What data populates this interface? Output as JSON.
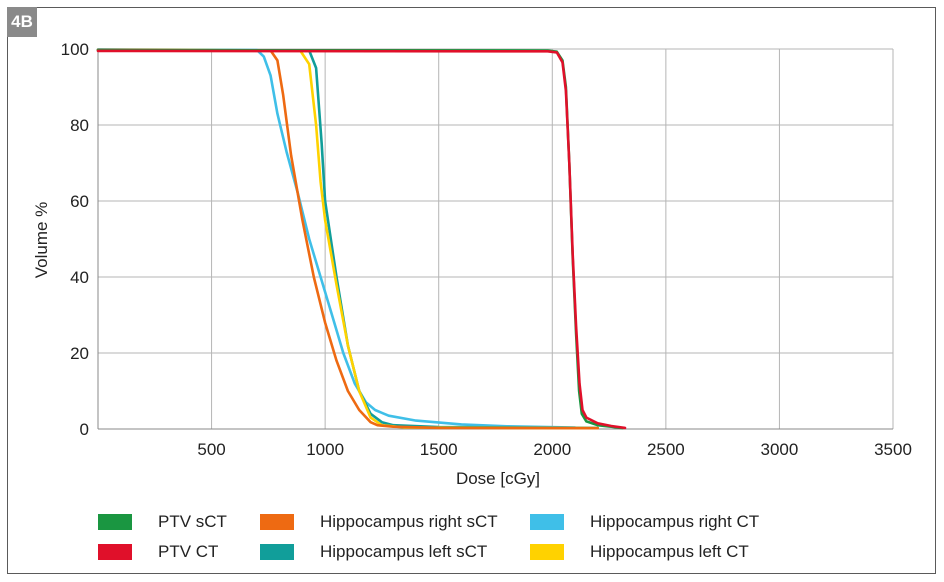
{
  "panel_label": "4B",
  "chart_data": {
    "type": "line",
    "xlabel": "Dose [cGy]",
    "ylabel": "Volume %",
    "xlim": [
      0,
      3500
    ],
    "ylim": [
      0,
      100
    ],
    "xticks": [
      "500",
      "1000",
      "1500",
      "2000",
      "2500",
      "3000",
      "3500"
    ],
    "yticks": [
      "0",
      "20",
      "40",
      "60",
      "80",
      "100"
    ],
    "grid": true,
    "legend_position": "bottom",
    "series": [
      {
        "name": "PTV sCT",
        "color": "#1a9641",
        "points": [
          [
            0,
            99.7
          ],
          [
            1980,
            99.6
          ],
          [
            2020,
            99.3
          ],
          [
            2045,
            97
          ],
          [
            2060,
            90
          ],
          [
            2075,
            70
          ],
          [
            2090,
            45
          ],
          [
            2105,
            25
          ],
          [
            2118,
            10
          ],
          [
            2130,
            4
          ],
          [
            2150,
            2
          ],
          [
            2200,
            1
          ],
          [
            2260,
            0.6
          ],
          [
            2310,
            0.2
          ]
        ]
      },
      {
        "name": "PTV CT",
        "color": "#e0102a",
        "points": [
          [
            0,
            99.5
          ],
          [
            1980,
            99.4
          ],
          [
            2020,
            99.1
          ],
          [
            2045,
            96.5
          ],
          [
            2060,
            89
          ],
          [
            2075,
            70
          ],
          [
            2090,
            46
          ],
          [
            2105,
            27
          ],
          [
            2120,
            12
          ],
          [
            2133,
            5
          ],
          [
            2150,
            3
          ],
          [
            2200,
            1.5
          ],
          [
            2260,
            0.8
          ],
          [
            2320,
            0.3
          ]
        ]
      },
      {
        "name": "Hippocampus right sCT",
        "color": "#ee6a12",
        "points": [
          [
            0,
            99.8
          ],
          [
            760,
            99.6
          ],
          [
            790,
            97
          ],
          [
            815,
            88
          ],
          [
            850,
            72
          ],
          [
            900,
            55
          ],
          [
            950,
            40
          ],
          [
            1000,
            28
          ],
          [
            1050,
            18
          ],
          [
            1100,
            10
          ],
          [
            1150,
            5
          ],
          [
            1200,
            1.8
          ],
          [
            1230,
            1
          ],
          [
            1300,
            0.6
          ],
          [
            1500,
            0.3
          ],
          [
            2200,
            0.2
          ]
        ]
      },
      {
        "name": "Hippocampus left sCT",
        "color": "#119e9a",
        "points": [
          [
            0,
            99.8
          ],
          [
            930,
            99.6
          ],
          [
            960,
            95
          ],
          [
            985,
            75
          ],
          [
            1000,
            60
          ],
          [
            1050,
            40
          ],
          [
            1100,
            22
          ],
          [
            1150,
            10
          ],
          [
            1200,
            4
          ],
          [
            1250,
            1.8
          ],
          [
            1300,
            1
          ],
          [
            1500,
            0.5
          ],
          [
            2200,
            0.3
          ]
        ]
      },
      {
        "name": "Hippocampus right CT",
        "color": "#3fbfe8",
        "points": [
          [
            0,
            99.9
          ],
          [
            700,
            99.7
          ],
          [
            730,
            98
          ],
          [
            760,
            93
          ],
          [
            790,
            83
          ],
          [
            830,
            73
          ],
          [
            880,
            62
          ],
          [
            930,
            50
          ],
          [
            980,
            40
          ],
          [
            1030,
            30
          ],
          [
            1080,
            20
          ],
          [
            1130,
            12
          ],
          [
            1180,
            7
          ],
          [
            1220,
            5
          ],
          [
            1280,
            3.5
          ],
          [
            1400,
            2.2
          ],
          [
            1600,
            1.2
          ],
          [
            1800,
            0.7
          ],
          [
            2100,
            0.4
          ]
        ]
      },
      {
        "name": "Hippocampus left CT",
        "color": "#ffd200",
        "points": [
          [
            0,
            99.8
          ],
          [
            890,
            99.6
          ],
          [
            930,
            96
          ],
          [
            960,
            80
          ],
          [
            980,
            65
          ],
          [
            1000,
            55
          ],
          [
            1050,
            38
          ],
          [
            1100,
            22
          ],
          [
            1150,
            10
          ],
          [
            1200,
            3
          ],
          [
            1250,
            1
          ],
          [
            1350,
            0.4
          ],
          [
            2200,
            0.2
          ]
        ]
      }
    ]
  }
}
